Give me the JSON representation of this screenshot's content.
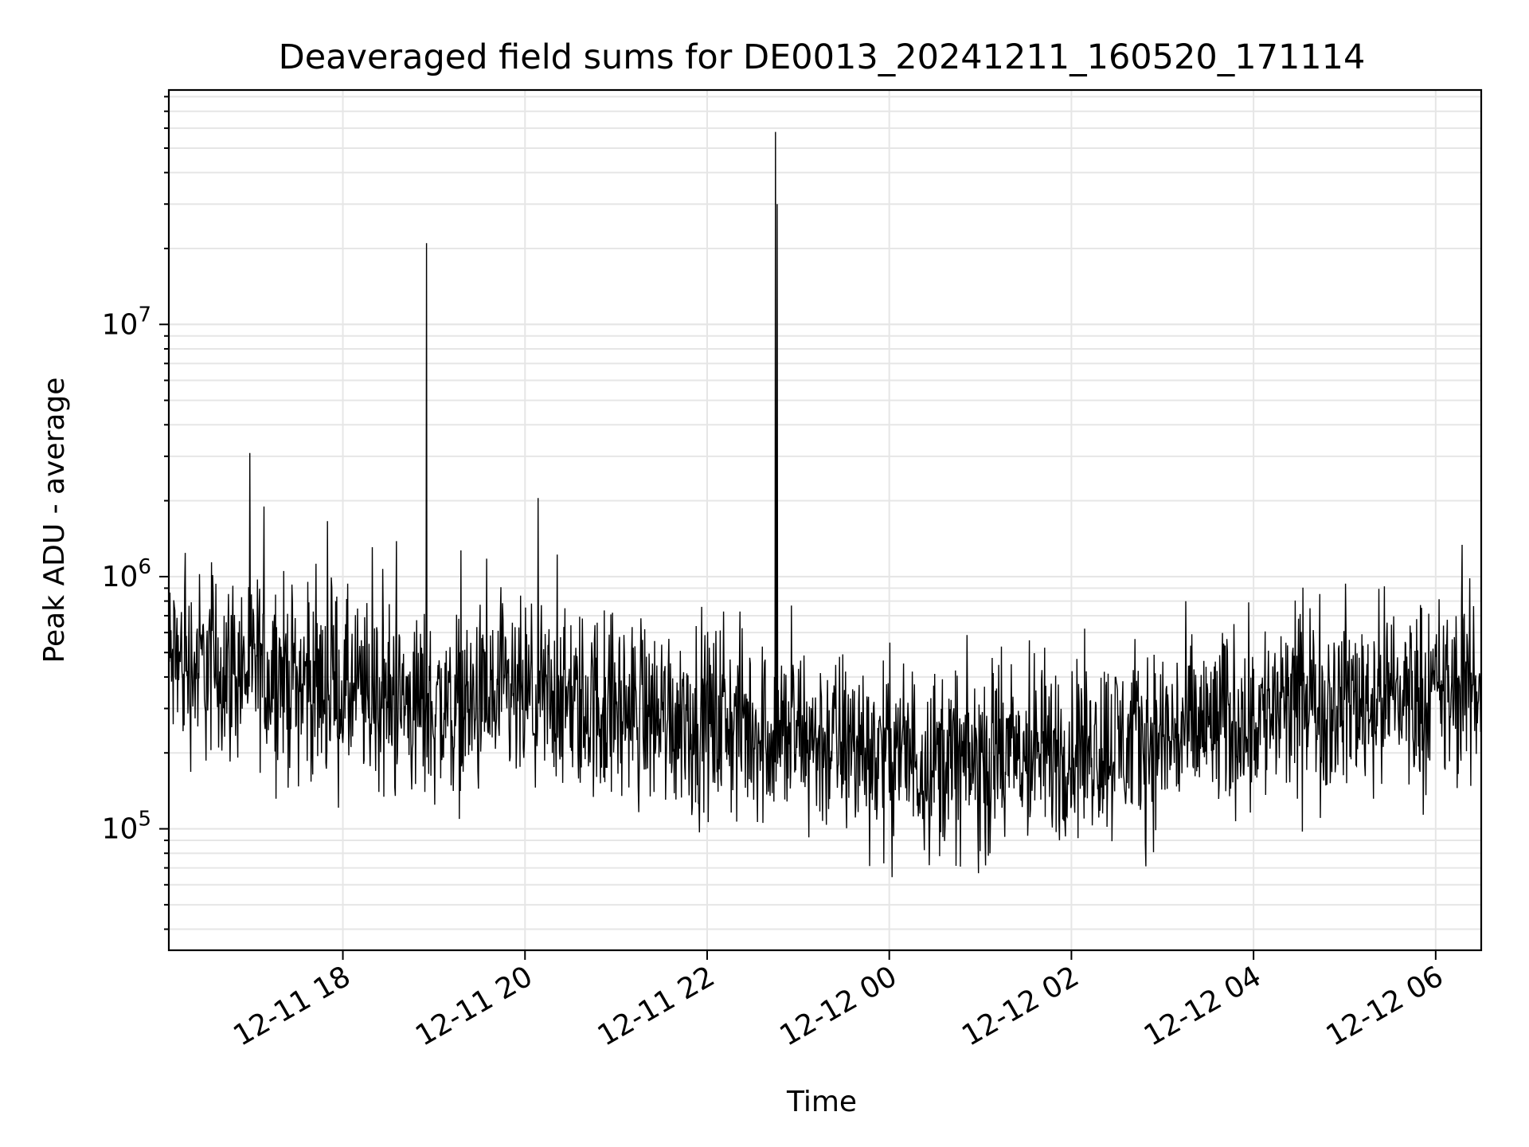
{
  "chart_data": {
    "type": "line",
    "title": "Deaveraged field sums for DE0013_20241211_160520_171114",
    "xlabel": "Time",
    "ylabel": "Peak ADU - average",
    "yscale": "log",
    "ylim": [
      33000,
      85000000
    ],
    "xlim": [
      "2024-12-11 16:05:20",
      "2024-12-12 06:30:00"
    ],
    "grid": true,
    "line_color": "#000000",
    "grid_color": "#e6e6e6",
    "x_ticks": [
      "2024-12-11 18:00",
      "2024-12-11 20:00",
      "2024-12-11 22:00",
      "2024-12-12 00:00",
      "2024-12-12 02:00",
      "2024-12-12 04:00",
      "2024-12-12 06:00"
    ],
    "x_tick_labels": [
      "12-11 18",
      "12-11 20",
      "12-11 22",
      "12-12 00",
      "12-12 02",
      "12-12 04",
      "12-12 06"
    ],
    "y_ticks": [
      100000,
      1000000,
      10000000
    ],
    "y_tick_labels": [
      {
        "base": "10",
        "exp": "5"
      },
      {
        "base": "10",
        "exp": "6"
      },
      {
        "base": "10",
        "exp": "7"
      }
    ],
    "baseline": {
      "x": [
        "2024-12-11 16:05",
        "2024-12-11 17:00",
        "2024-12-11 18:00",
        "2024-12-11 19:00",
        "2024-12-11 20:00",
        "2024-12-11 21:00",
        "2024-12-11 22:00",
        "2024-12-11 23:00",
        "2024-12-12 00:00",
        "2024-12-12 01:00",
        "2024-12-12 02:00",
        "2024-12-12 03:00",
        "2024-12-12 04:00",
        "2024-12-12 05:00",
        "2024-12-12 06:00",
        "2024-12-12 06:30"
      ],
      "y": [
        450000,
        430000,
        350000,
        300000,
        320000,
        300000,
        270000,
        230000,
        200000,
        180000,
        210000,
        230000,
        280000,
        330000,
        340000,
        350000
      ]
    },
    "spikes": [
      {
        "x": "2024-12-11 18:55",
        "y": 21000000
      },
      {
        "x": "2024-12-11 22:45",
        "y": 58000000
      },
      {
        "x": "2024-12-11 22:46",
        "y": 30000000
      }
    ],
    "noise": {
      "approx_points": 2400,
      "log10_spread": 0.55
    }
  }
}
